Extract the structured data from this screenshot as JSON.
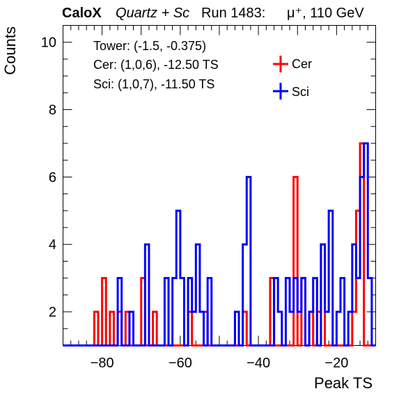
{
  "header": {
    "experiment": "CaloX",
    "config": "Quartz + Sc",
    "run": "Run 1483:",
    "beam": "μ⁺, 110 GeV"
  },
  "annotations": {
    "tower": "Tower: (-1.5, -0.375)",
    "cer": "Cer: (1,0,6), -12.50 TS",
    "sci": "Sci: (1,0,7), -11.50 TS"
  },
  "colors": {
    "cer": "#ff0000",
    "sci": "#0000ff"
  },
  "chart_data": {
    "type": "histogram",
    "xlabel": "Peak TS",
    "ylabel": "Counts",
    "xlim": [
      -90,
      -10
    ],
    "ylim": [
      1,
      10.5
    ],
    "xticks": [
      -80,
      -60,
      -40,
      -20
    ],
    "yticks": [
      2,
      4,
      6,
      8,
      10
    ],
    "bin_width": 1,
    "legend_placement": "top-right",
    "grid": false,
    "series": [
      {
        "name": "Cer",
        "color": "#ff0000",
        "bins": [
          [
            -82,
            2
          ],
          [
            -80,
            3
          ],
          [
            -78,
            2
          ],
          [
            -77,
            1
          ],
          [
            -76,
            2
          ],
          [
            -74,
            2
          ],
          [
            -73,
            1
          ],
          [
            -70,
            3
          ],
          [
            -67,
            2
          ],
          [
            -66,
            1
          ],
          [
            -61,
            1
          ],
          [
            -58,
            2
          ],
          [
            -57,
            1
          ],
          [
            -54,
            2
          ],
          [
            -53,
            1
          ],
          [
            -48,
            1
          ],
          [
            -44,
            2
          ],
          [
            -43,
            1
          ],
          [
            -37,
            3
          ],
          [
            -36,
            1
          ],
          [
            -31,
            6
          ],
          [
            -30,
            1
          ],
          [
            -29,
            3
          ],
          [
            -27,
            2
          ],
          [
            -25,
            2
          ],
          [
            -24,
            4
          ],
          [
            -23,
            1
          ],
          [
            -21,
            1
          ],
          [
            -16,
            2
          ],
          [
            -15,
            5
          ],
          [
            -14,
            7
          ],
          [
            -13,
            1
          ]
        ]
      },
      {
        "name": "Sci",
        "color": "#0000ff",
        "bins": [
          [
            -76,
            3
          ],
          [
            -75,
            1
          ],
          [
            -73,
            2
          ],
          [
            -71,
            1
          ],
          [
            -69,
            4
          ],
          [
            -68,
            1
          ],
          [
            -64,
            3
          ],
          [
            -63,
            1
          ],
          [
            -62,
            3
          ],
          [
            -61,
            5
          ],
          [
            -60,
            3
          ],
          [
            -58,
            3
          ],
          [
            -57,
            2
          ],
          [
            -56,
            4
          ],
          [
            -55,
            2
          ],
          [
            -53,
            3
          ],
          [
            -51,
            1
          ],
          [
            -46,
            2
          ],
          [
            -45,
            1
          ],
          [
            -44,
            4
          ],
          [
            -43,
            6
          ],
          [
            -42,
            1
          ],
          [
            -36,
            3
          ],
          [
            -35,
            2
          ],
          [
            -34,
            1
          ],
          [
            -33,
            3
          ],
          [
            -32,
            2
          ],
          [
            -31,
            3
          ],
          [
            -30,
            2
          ],
          [
            -29,
            3
          ],
          [
            -28,
            1
          ],
          [
            -27,
            2
          ],
          [
            -26,
            3
          ],
          [
            -25,
            1
          ],
          [
            -24,
            4
          ],
          [
            -23,
            2
          ],
          [
            -22,
            5
          ],
          [
            -20,
            2
          ],
          [
            -19,
            3
          ],
          [
            -18,
            1
          ],
          [
            -17,
            2
          ],
          [
            -16,
            4
          ],
          [
            -15,
            3
          ],
          [
            -14,
            6
          ],
          [
            -13,
            7
          ],
          [
            -12,
            3
          ]
        ]
      }
    ]
  }
}
